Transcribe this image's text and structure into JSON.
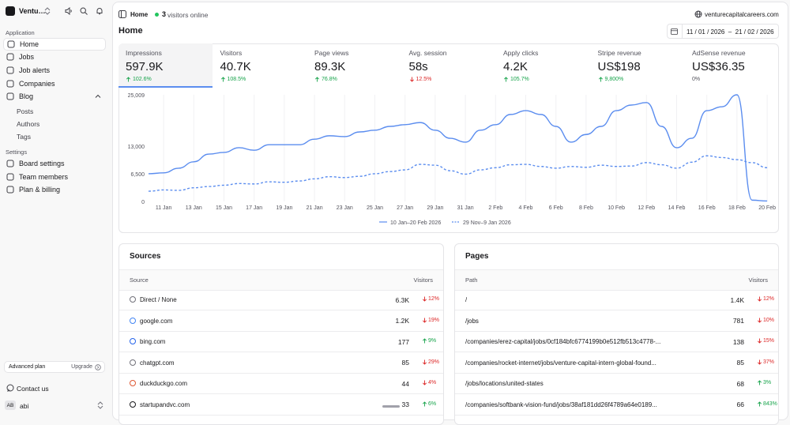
{
  "sidebar": {
    "brand": "Ventu…",
    "sections": [
      {
        "heading": "Application",
        "items": [
          "Home",
          "Jobs",
          "Job alerts",
          "Companies",
          "Blog"
        ],
        "subitems": [
          "Posts",
          "Authors",
          "Tags"
        ]
      },
      {
        "heading": "Settings",
        "items": [
          "Board settings",
          "Team members",
          "Plan & billing"
        ]
      }
    ],
    "plan": "Advanced plan",
    "upgrade": "Upgrade",
    "contact": "Contact us",
    "user_initials": "AB",
    "user_name": "abi"
  },
  "header": {
    "breadcrumb": "Home",
    "online_count": "3",
    "online_label": "visitors online",
    "domain": "venturecapitalcareers.com",
    "title": "Home",
    "date_range": "11 / 01 / 2026  –  21 / 02 / 2026"
  },
  "metrics": [
    {
      "label": "Impressions",
      "value": "597.9K",
      "change": "102.6%",
      "dir": "up"
    },
    {
      "label": "Visitors",
      "value": "40.7K",
      "change": "108.5%",
      "dir": "up"
    },
    {
      "label": "Page views",
      "value": "89.3K",
      "change": "76.8%",
      "dir": "up"
    },
    {
      "label": "Avg. session",
      "value": "58s",
      "change": "12.5%",
      "dir": "down"
    },
    {
      "label": "Apply clicks",
      "value": "4.2K",
      "change": "105.7%",
      "dir": "up"
    },
    {
      "label": "Stripe revenue",
      "value": "US$198",
      "change": "9,800%",
      "dir": "up"
    },
    {
      "label": "AdSense revenue",
      "value": "US$36.35",
      "change": "0%",
      "dir": "flat"
    }
  ],
  "chart_data": {
    "type": "line",
    "categories": [
      null,
      "11 Jan",
      null,
      "13 Jan",
      null,
      "15 Jan",
      null,
      "17 Jan",
      null,
      "19 Jan",
      null,
      "21 Jan",
      null,
      "23 Jan",
      null,
      "25 Jan",
      null,
      "27 Jan",
      null,
      "29 Jan",
      null,
      "31 Jan",
      null,
      "2 Feb",
      null,
      "4 Feb",
      null,
      "6 Feb",
      null,
      "8 Feb",
      null,
      "10 Feb",
      null,
      "12 Feb",
      null,
      "14 Feb",
      null,
      "16 Feb",
      null,
      "18 Feb",
      null,
      "20 Feb"
    ],
    "series": [
      {
        "name": "10 Jan–20 Feb 2026",
        "color": "#5b8def",
        "dash": false,
        "values": [
          6500,
          6700,
          7800,
          9300,
          11100,
          11500,
          12600,
          12000,
          13300,
          13300,
          13300,
          14600,
          15400,
          15200,
          16300,
          16700,
          17600,
          18000,
          18500,
          16700,
          14800,
          13900,
          16700,
          18000,
          20400,
          21300,
          20400,
          17600,
          13900,
          15700,
          17600,
          21300,
          22600,
          23200,
          17600,
          12600,
          14800,
          21300,
          22200,
          25009,
          300,
          100
        ]
      },
      {
        "name": "29 Nov–9 Jan 2026",
        "color": "#5b8def",
        "dash": true,
        "values": [
          2400,
          2700,
          2600,
          3200,
          3500,
          3800,
          4200,
          4100,
          4600,
          4500,
          4800,
          5300,
          5800,
          5600,
          5900,
          6500,
          7000,
          7400,
          8700,
          8500,
          7200,
          6400,
          7400,
          7900,
          8600,
          8700,
          8200,
          7800,
          8200,
          8000,
          8500,
          8200,
          8300,
          9100,
          8600,
          7800,
          9200,
          10700,
          10300,
          9800,
          9100,
          7900
        ]
      }
    ],
    "ylim": [
      0,
      25009
    ],
    "yticks": [
      0,
      {
        "value": 6500,
        "label": "6,500"
      },
      {
        "value": 13000,
        "label": "13,000"
      },
      {
        "value": 25009,
        "label": "25,009"
      }
    ],
    "legend": "bottom"
  },
  "sources": {
    "title": "Sources",
    "columns": [
      "Source",
      "Visitors"
    ],
    "rows": [
      {
        "name": "Direct / None",
        "visitors": "6.3K",
        "change": "12%",
        "dir": "down"
      },
      {
        "name": "google.com",
        "visitors": "1.2K",
        "change": "19%",
        "dir": "down"
      },
      {
        "name": "bing.com",
        "visitors": "177",
        "change": "9%",
        "dir": "up"
      },
      {
        "name": "chatgpt.com",
        "visitors": "85",
        "change": "29%",
        "dir": "down"
      },
      {
        "name": "duckduckgo.com",
        "visitors": "44",
        "change": "4%",
        "dir": "down"
      },
      {
        "name": "startupandvc.com",
        "visitors": "33",
        "change": "6%",
        "dir": "up"
      }
    ]
  },
  "pages": {
    "title": "Pages",
    "columns": [
      "Path",
      "Visitors"
    ],
    "rows": [
      {
        "name": "/",
        "visitors": "1.4K",
        "change": "12%",
        "dir": "down"
      },
      {
        "name": "/jobs",
        "visitors": "781",
        "change": "10%",
        "dir": "down"
      },
      {
        "name": "/companies/erez-capital/jobs/0cf184bfc6774199b0e512fb513c4778-...",
        "visitors": "138",
        "change": "15%",
        "dir": "down"
      },
      {
        "name": "/companies/rocket-internet/jobs/venture-capital-intern-global-found...",
        "visitors": "85",
        "change": "37%",
        "dir": "down"
      },
      {
        "name": "/jobs/locations/united-states",
        "visitors": "68",
        "change": "3%",
        "dir": "up"
      },
      {
        "name": "/companies/softbank-vision-fund/jobs/38af181dd26f4789a64e0189...",
        "visitors": "66",
        "change": "843%",
        "dir": "up"
      }
    ]
  }
}
